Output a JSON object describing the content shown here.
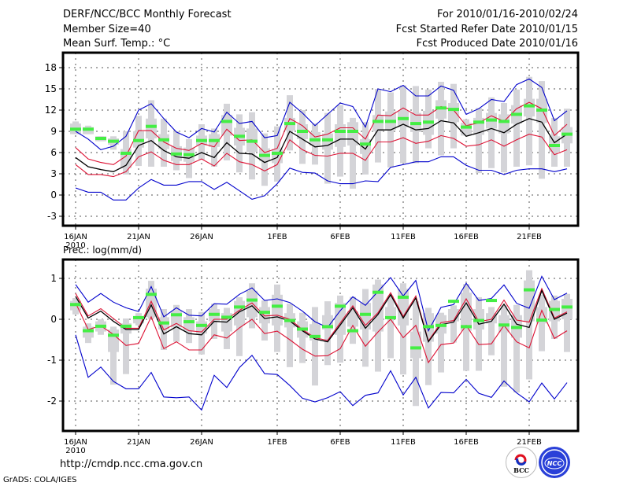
{
  "header": {
    "title": "DERF/NCC/BCC Monthly Forecast",
    "member_size": "Member Size=40",
    "variable_top": "Mean Surf. Temp.: °C",
    "period": "For 2010/01/16-2010/02/24",
    "started": "Fcst Started Refer Date 2010/01/15",
    "produced": "Fcst Produced Date 2010/01/16"
  },
  "footer": {
    "url": "http://cmdp.ncc.cma.gov.cn",
    "credit": "GrADS: COLA/IGES",
    "logos": [
      {
        "name": "bcc-logo",
        "text": "BCC"
      },
      {
        "name": "ncc-logo",
        "text": "NCC"
      }
    ]
  },
  "colors": {
    "spread_outer": "#0000cc",
    "spread_inner": "#dd1133",
    "mean": "#000000",
    "observed": "#44ee44",
    "box": "#d4d4d8"
  },
  "chart_data": [
    {
      "type": "line",
      "title": "Mean Surf. Temp.: °C",
      "xlabel": "",
      "ylabel": "°C",
      "ylim": [
        -4,
        20
      ],
      "yticks": [
        -3,
        0,
        3,
        6,
        9,
        12,
        15,
        18
      ],
      "ytick_labels": [
        "-3",
        "0",
        "3",
        "6",
        "9",
        "12",
        "15",
        "18"
      ],
      "x_start": "2010-01-16",
      "xtick_days": [
        0,
        5,
        10,
        16,
        21,
        26,
        31,
        36
      ],
      "xtick_labels": [
        "16JAN",
        "21JAN",
        "26JAN",
        "1FEB",
        "6FEB",
        "11FEB",
        "16FEB",
        "21FEB"
      ],
      "xtick_sublabel": "2010",
      "grid": true,
      "series": [
        {
          "name": "max",
          "color": "blue",
          "values": [
            9.0,
            7.9,
            6.4,
            6.9,
            8.3,
            12.0,
            12.9,
            10.8,
            8.9,
            8.1,
            9.4,
            8.9,
            11.7,
            10.1,
            10.4,
            8.1,
            8.4,
            13.1,
            11.6,
            9.8,
            11.4,
            13.0,
            12.5,
            9.6,
            15.0,
            14.6,
            15.5,
            14.0,
            14.0,
            15.4,
            14.8,
            11.4,
            12.2,
            13.5,
            13.2,
            15.6,
            16.4,
            15.2,
            10.5,
            11.9
          ]
        },
        {
          "name": "upper",
          "color": "red",
          "values": [
            6.7,
            5.1,
            4.6,
            4.3,
            5.5,
            9.1,
            9.1,
            7.5,
            6.6,
            6.3,
            7.3,
            6.8,
            9.3,
            7.7,
            7.8,
            6.0,
            6.6,
            10.8,
            9.8,
            8.2,
            8.6,
            9.5,
            9.5,
            7.9,
            11.3,
            11.2,
            12.3,
            11.3,
            11.3,
            12.5,
            12.0,
            9.8,
            10.2,
            11.2,
            10.4,
            12.2,
            13.1,
            12.2,
            8.4,
            10.0
          ]
        },
        {
          "name": "ensemble_mean",
          "color": "black",
          "values": [
            5.3,
            4.0,
            3.6,
            3.3,
            4.2,
            7.0,
            7.7,
            6.3,
            5.4,
            5.2,
            6.0,
            5.3,
            7.4,
            5.9,
            5.8,
            4.6,
            5.3,
            9.0,
            7.9,
            6.8,
            7.0,
            7.9,
            7.9,
            6.5,
            9.2,
            9.2,
            10.0,
            9.2,
            9.4,
            10.5,
            10.2,
            8.3,
            8.8,
            9.4,
            8.8,
            10.0,
            10.8,
            10.3,
            7.4,
            8.6
          ]
        },
        {
          "name": "lower",
          "color": "red",
          "values": [
            4.3,
            2.9,
            2.9,
            2.6,
            3.3,
            5.4,
            6.1,
            4.9,
            4.3,
            4.3,
            5.1,
            4.1,
            5.9,
            4.7,
            4.3,
            3.4,
            4.3,
            7.8,
            6.4,
            5.6,
            5.5,
            5.9,
            5.9,
            4.9,
            7.5,
            7.5,
            8.1,
            7.3,
            7.6,
            8.4,
            8.0,
            6.9,
            7.1,
            7.8,
            6.9,
            7.8,
            8.6,
            8.2,
            5.7,
            6.4
          ]
        },
        {
          "name": "min",
          "color": "blue",
          "values": [
            1.0,
            0.4,
            0.4,
            -0.7,
            -0.7,
            1.0,
            2.2,
            1.4,
            1.4,
            1.9,
            1.9,
            0.8,
            1.8,
            0.6,
            -0.6,
            -0.1,
            1.6,
            3.8,
            3.2,
            3.1,
            2.0,
            1.6,
            1.6,
            2.0,
            1.9,
            3.9,
            4.3,
            4.7,
            4.7,
            5.4,
            5.4,
            4.2,
            3.5,
            3.5,
            2.9,
            3.5,
            3.7,
            3.7,
            3.3,
            3.7
          ]
        },
        {
          "name": "observed",
          "color": "green",
          "values": [
            9.3,
            9.3,
            8.0,
            7.6,
            5.9,
            7.7,
            9.7,
            7.8,
            5.8,
            5.7,
            7.7,
            7.7,
            10.4,
            8.3,
            7.6,
            5.6,
            5.9,
            10.1,
            9.0,
            7.8,
            7.8,
            9.0,
            9.0,
            7.2,
            10.4,
            10.4,
            10.8,
            10.1,
            10.3,
            12.3,
            12.1,
            9.6,
            10.3,
            10.6,
            10.4,
            11.4,
            12.6,
            12.0,
            7.0,
            8.6
          ]
        }
      ],
      "boxes": {
        "low": [
          8.6,
          8.6,
          7.6,
          6.4,
          2.9,
          4.1,
          4.0,
          4.0,
          3.5,
          2.4,
          5.0,
          4.0,
          4.9,
          3.2,
          2.2,
          1.3,
          1.9,
          6.3,
          4.4,
          4.3,
          1.6,
          2.6,
          0.9,
          2.9,
          4.6,
          3.9,
          4.5,
          4.5,
          6.6,
          5.6,
          6.6,
          9.3,
          3.1,
          3.8,
          3.2,
          4.0,
          4.2,
          2.3,
          4.0,
          4.0
        ],
        "high": [
          10.4,
          9.8,
          8.3,
          8.3,
          9.0,
          11.2,
          13.4,
          10.8,
          9.0,
          7.9,
          10.0,
          9.4,
          12.9,
          11.4,
          11.7,
          8.7,
          9.7,
          14.1,
          12.0,
          10.1,
          11.6,
          12.7,
          10.9,
          10.3,
          15.0,
          14.5,
          15.5,
          15.4,
          14.9,
          16.0,
          15.7,
          10.7,
          12.3,
          13.8,
          13.0,
          14.9,
          16.7,
          16.1,
          10.9,
          12.2
        ],
        "q1": [
          8.6,
          8.6,
          7.6,
          7.1,
          3.8,
          6.7,
          8.0,
          6.5,
          4.8,
          4.7,
          7.0,
          6.8,
          8.4,
          7.0,
          6.1,
          4.8,
          4.5,
          9.1,
          7.9,
          7.0,
          6.4,
          6.8,
          7.0,
          5.8,
          9.0,
          9.2,
          9.6,
          8.9,
          8.5,
          10.8,
          10.3,
          8.4,
          8.5,
          9.4,
          8.7,
          10.1,
          11.1,
          10.2,
          6.1,
          7.3
        ],
        "q3": [
          10.1,
          9.6,
          8.3,
          8.0,
          6.5,
          9.0,
          10.8,
          8.6,
          6.9,
          6.7,
          8.4,
          8.6,
          11.3,
          9.5,
          9.4,
          6.6,
          6.5,
          10.9,
          10.0,
          8.9,
          8.7,
          10.0,
          10.3,
          7.9,
          11.3,
          11.8,
          11.9,
          11.6,
          11.9,
          13.4,
          13.0,
          10.2,
          10.9,
          11.6,
          11.4,
          12.7,
          13.6,
          13.6,
          8.3,
          9.6
        ]
      }
    },
    {
      "type": "line",
      "title": "Prec.: log(mm/d)",
      "xlabel": "",
      "ylabel": "log(mm/d)",
      "ylim": [
        -2.7,
        1.45
      ],
      "yticks": [
        -2,
        -1,
        0,
        1
      ],
      "ytick_labels": [
        "-2",
        "-1",
        "0",
        "1"
      ],
      "x_start": "2010-01-16",
      "xtick_days": [
        0,
        5,
        10,
        16,
        21,
        26,
        31,
        36
      ],
      "xtick_labels": [
        "16JAN",
        "21JAN",
        "26JAN",
        "1FEB",
        "6FEB",
        "11FEB",
        "16FEB",
        "21FEB"
      ],
      "xtick_sublabel": "2010",
      "grid": true,
      "series": [
        {
          "name": "max",
          "color": "blue",
          "values": [
            0.85,
            0.42,
            0.63,
            0.42,
            0.28,
            0.19,
            0.8,
            0.06,
            0.28,
            0.1,
            0.08,
            0.38,
            0.37,
            0.61,
            0.77,
            0.46,
            0.5,
            0.41,
            0.2,
            -0.06,
            -0.2,
            0.21,
            0.55,
            0.34,
            0.68,
            1.02,
            0.57,
            0.95,
            -0.28,
            0.29,
            0.36,
            0.88,
            0.46,
            0.51,
            0.84,
            0.39,
            0.27,
            1.05,
            0.48,
            0.64
          ]
        },
        {
          "name": "upper",
          "color": "red",
          "values": [
            0.63,
            0.08,
            0.26,
            0.02,
            -0.22,
            -0.22,
            0.44,
            -0.26,
            -0.1,
            -0.28,
            -0.31,
            0.0,
            0.0,
            0.22,
            0.4,
            0.08,
            0.1,
            0.0,
            -0.25,
            -0.45,
            -0.52,
            -0.09,
            0.33,
            -0.15,
            0.16,
            0.65,
            0.07,
            0.57,
            -0.53,
            -0.08,
            -0.03,
            0.5,
            -0.06,
            0.0,
            0.47,
            -0.02,
            -0.07,
            0.75,
            0.03,
            0.18
          ]
        },
        {
          "name": "ensemble_mean",
          "color": "black",
          "values": [
            0.56,
            0.03,
            0.2,
            -0.05,
            -0.25,
            -0.25,
            0.35,
            -0.36,
            -0.18,
            -0.35,
            -0.38,
            -0.05,
            -0.07,
            0.18,
            0.33,
            0.02,
            0.06,
            -0.04,
            -0.28,
            -0.48,
            -0.55,
            -0.14,
            0.28,
            -0.22,
            0.12,
            0.6,
            0.03,
            0.52,
            -0.55,
            -0.13,
            -0.07,
            0.4,
            -0.12,
            -0.05,
            0.37,
            -0.12,
            -0.2,
            0.7,
            0.0,
            0.15
          ]
        },
        {
          "name": "lower",
          "color": "red",
          "values": [
            0.4,
            -0.25,
            -0.16,
            -0.37,
            -0.64,
            -0.59,
            0.06,
            -0.72,
            -0.55,
            -0.75,
            -0.75,
            -0.38,
            -0.46,
            -0.21,
            0.0,
            -0.35,
            -0.29,
            -0.5,
            -0.73,
            -0.9,
            -0.89,
            -0.72,
            -0.15,
            -0.66,
            -0.31,
            0.0,
            -0.45,
            -0.15,
            -1.06,
            -0.62,
            -0.58,
            -0.15,
            -0.62,
            -0.6,
            -0.15,
            -0.55,
            -0.7,
            0.22,
            -0.47,
            -0.28
          ]
        },
        {
          "name": "min",
          "color": "blue",
          "values": [
            -0.38,
            -1.42,
            -1.17,
            -1.52,
            -1.7,
            -1.7,
            -1.3,
            -1.9,
            -1.92,
            -1.9,
            -2.22,
            -1.37,
            -1.67,
            -1.18,
            -0.88,
            -1.33,
            -1.35,
            -1.62,
            -1.93,
            -2.02,
            -1.92,
            -1.77,
            -2.11,
            -1.86,
            -1.8,
            -1.26,
            -1.85,
            -1.42,
            -2.17,
            -1.79,
            -1.8,
            -1.47,
            -1.81,
            -1.91,
            -1.51,
            -1.8,
            -2.02,
            -1.56,
            -1.95,
            -1.55
          ]
        },
        {
          "name": "observed",
          "color": "green",
          "values": [
            0.36,
            -0.28,
            -0.17,
            -0.39,
            -0.17,
            0.04,
            0.61,
            -0.09,
            0.11,
            -0.06,
            -0.15,
            0.12,
            0.05,
            0.3,
            0.47,
            0.17,
            0.32,
            -0.03,
            -0.24,
            -0.42,
            -0.18,
            0.32,
            -0.28,
            0.12,
            0.66,
            0.04,
            0.54,
            -0.7,
            -0.18,
            -0.15,
            0.44,
            -0.18,
            -0.03,
            0.46,
            -0.14,
            -0.2,
            0.72,
            -0.02,
            0.24,
            0.3
          ]
        }
      ],
      "boxes": {
        "low": [
          0.12,
          -0.58,
          -0.38,
          -1.6,
          -1.34,
          -0.15,
          0.01,
          -0.75,
          -0.55,
          -0.58,
          -0.86,
          -0.48,
          -0.73,
          -0.9,
          -0.22,
          -0.52,
          -0.8,
          -1.17,
          -1.07,
          -1.62,
          -1.12,
          -1.06,
          -0.6,
          -1.16,
          -1.28,
          -0.95,
          -1.35,
          -2.12,
          -1.61,
          -1.3,
          -0.57,
          -1.26,
          -1.26,
          -0.88,
          -1.65,
          -1.79,
          -1.47,
          -0.78,
          -0.48,
          -0.8
        ],
        "high": [
          0.52,
          -0.1,
          0.0,
          -0.18,
          0.02,
          0.15,
          0.94,
          0.25,
          0.35,
          0.25,
          0.18,
          0.38,
          0.28,
          0.54,
          0.88,
          0.46,
          0.85,
          0.38,
          0.16,
          0.3,
          0.44,
          0.58,
          0.55,
          0.74,
          0.97,
          0.57,
          0.88,
          0.44,
          0.28,
          0.16,
          0.34,
          0.86,
          0.54,
          0.3,
          0.34,
          0.35,
          1.2,
          0.6,
          0.58,
          0.62
        ],
        "q1": [
          0.22,
          -0.45,
          -0.3,
          -0.8,
          -0.35,
          -0.1,
          0.05,
          -0.25,
          -0.2,
          -0.28,
          -0.35,
          -0.05,
          -0.3,
          -0.15,
          0.05,
          -0.1,
          -0.15,
          -0.2,
          -0.45,
          -0.52,
          -0.25,
          -0.38,
          -0.18,
          -0.25,
          -0.3,
          0.05,
          -0.15,
          -0.95,
          -0.55,
          -0.35,
          -0.05,
          -0.28,
          -0.25,
          -0.1,
          -0.32,
          -0.45,
          -0.05,
          -0.1,
          -0.05,
          0.0
        ],
        "q3": [
          0.45,
          -0.18,
          -0.05,
          -0.25,
          -0.1,
          0.08,
          0.75,
          0.05,
          0.2,
          0.05,
          -0.05,
          0.25,
          0.15,
          0.45,
          0.7,
          0.3,
          0.6,
          0.15,
          -0.05,
          -0.12,
          0.1,
          0.4,
          0.2,
          0.4,
          0.85,
          0.3,
          0.75,
          -0.3,
          0.15,
          0.1,
          0.25,
          0.65,
          0.25,
          0.15,
          0.1,
          0.1,
          0.95,
          0.3,
          0.45,
          0.5
        ]
      }
    }
  ]
}
